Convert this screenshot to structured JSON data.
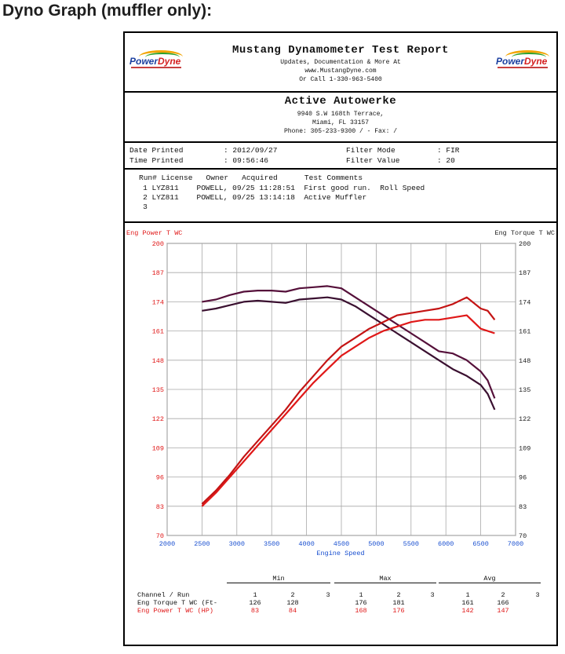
{
  "page_heading": "Dyno Graph (muffler only):",
  "report": {
    "logo_left": {
      "power": "Power",
      "dyne": "Dyne"
    },
    "logo_right": {
      "power": "Power",
      "dyne": "Dyne"
    },
    "title": "Mustang Dynamometer Test Report",
    "subtitle1": "Updates, Documentation & More At",
    "subtitle2": "www.MustangDyne.com",
    "subtitle3": "Or Call 1-330-963-5400",
    "company": "Active Autowerke",
    "address1": "9940 S.W 168th Terrace,",
    "address2": "Miami, FL  33157",
    "phone": "Phone: 305-233-9300 /  - Fax:  /",
    "date_label": "Date Printed",
    "date_value": ": 2012/09/27",
    "time_label": "Time Printed",
    "time_value": ": 09:56:46",
    "filter_mode_label": "Filter Mode",
    "filter_mode_value": ": FIR",
    "filter_value_label": "Filter Value",
    "filter_value_value": ": 20",
    "runs_header": "Run# License   Owner   Acquired      Test Comments",
    "runs": [
      "   1 LYZ811    POWELL, 09/25 11:28:51  First good run.  Roll Speed",
      "   2 LYZ811    POWELL, 09/25 13:14:18  Active Muffler",
      "   3"
    ]
  },
  "chart_data": {
    "type": "line",
    "title": "",
    "xlabel": "Engine Speed",
    "ylabel_left": "Eng Power T WC",
    "ylabel_right": "Eng Torque T WC",
    "xlim": [
      2000,
      7000
    ],
    "ylim": [
      70,
      200
    ],
    "x_ticks": [
      "2000",
      "2500",
      "3000",
      "3500",
      "4000",
      "4500",
      "5000",
      "5500",
      "6000",
      "6500",
      "7000"
    ],
    "y_ticks": [
      "70",
      "83",
      "96",
      "109",
      "122",
      "135",
      "148",
      "161",
      "174",
      "187",
      "200"
    ],
    "series": [
      {
        "name": "Eng Torque T WC run 1",
        "color": "#3a1030",
        "x": [
          2500,
          2700,
          2900,
          3100,
          3300,
          3500,
          3700,
          3900,
          4100,
          4300,
          4500,
          4700,
          4900,
          5100,
          5300,
          5500,
          5700,
          5900,
          6100,
          6300,
          6500,
          6600,
          6700
        ],
        "values": [
          170,
          171,
          172.5,
          174,
          174.5,
          174,
          173.5,
          175,
          175.5,
          176,
          175,
          172,
          168,
          164,
          160,
          156,
          152,
          148,
          144,
          141,
          137,
          133,
          126
        ]
      },
      {
        "name": "Eng Torque T WC run 2",
        "color": "#55103a",
        "x": [
          2500,
          2700,
          2900,
          3100,
          3300,
          3500,
          3700,
          3900,
          4100,
          4300,
          4500,
          4700,
          4900,
          5100,
          5300,
          5500,
          5700,
          5900,
          6100,
          6300,
          6500,
          6600,
          6700
        ],
        "values": [
          174,
          175,
          177,
          178.5,
          179,
          179,
          178.5,
          180,
          180.5,
          181,
          180,
          176,
          172,
          168,
          164,
          160,
          156,
          152,
          151,
          148,
          143,
          139,
          131
        ]
      },
      {
        "name": "Eng Power T WC run 1",
        "color": "#e01818",
        "x": [
          2500,
          2700,
          2900,
          3100,
          3300,
          3500,
          3700,
          3900,
          4100,
          4300,
          4500,
          4700,
          4900,
          5100,
          5300,
          5500,
          5700,
          5900,
          6100,
          6300,
          6500,
          6600,
          6700
        ],
        "values": [
          83,
          89,
          96,
          103,
          110,
          117,
          124,
          131,
          138,
          144,
          150,
          154,
          158,
          161,
          163,
          165,
          166,
          166,
          167,
          168,
          162,
          161,
          160
        ]
      },
      {
        "name": "Eng Power T WC run 2",
        "color": "#c41414",
        "x": [
          2500,
          2700,
          2900,
          3100,
          3300,
          3500,
          3700,
          3900,
          4100,
          4300,
          4500,
          4700,
          4900,
          5100,
          5300,
          5500,
          5700,
          5900,
          6100,
          6300,
          6500,
          6600,
          6700
        ],
        "values": [
          84,
          90,
          97,
          105,
          112,
          119,
          126,
          134,
          141,
          148,
          154,
          158,
          162,
          165,
          168,
          169,
          170,
          171,
          173,
          176,
          171,
          170,
          166
        ]
      }
    ]
  },
  "stats": {
    "groups": [
      "Min",
      "Max",
      "Avg"
    ],
    "header": {
      "label": "Channel / Run",
      "cols": [
        "1",
        "2",
        "3",
        "1",
        "2",
        "3",
        "1",
        "2",
        "3"
      ]
    },
    "rows": [
      {
        "label": "Eng Torque T WC (Ft-",
        "color": "#111111",
        "cols": [
          "126",
          "128",
          "",
          "176",
          "181",
          "",
          "161",
          "166",
          ""
        ]
      },
      {
        "label": "Eng Power T WC (HP)",
        "color": "#e01818",
        "cols": [
          "83",
          "84",
          "",
          "168",
          "176",
          "",
          "142",
          "147",
          ""
        ]
      }
    ]
  }
}
